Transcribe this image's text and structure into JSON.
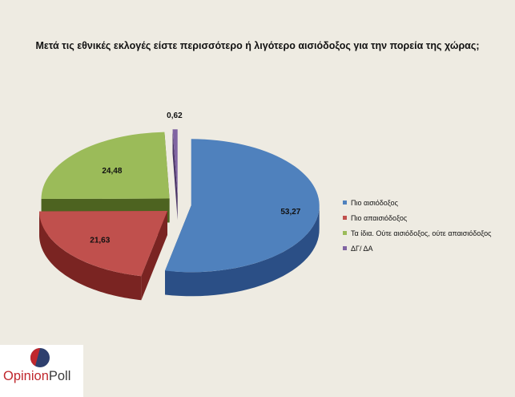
{
  "chart_data": {
    "type": "pie",
    "title": "Μετά τις εθνικές εκλογές είστε περισσότερο ή λιγότερο αισιόδοξος για την πορεία της χώρας;",
    "categories": [
      "Πιο αισιόδοξος",
      "Πιο απαισιόδοξος",
      "Τα ίδια. Ούτε αισιόδοξος, ούτε απαισιόδοξος",
      "ΔΓ/ ΔΑ"
    ],
    "values": [
      53.27,
      21.63,
      24.48,
      0.62
    ],
    "data_labels": [
      "53,27",
      "21,63",
      "24,48",
      "0,62"
    ],
    "colors": [
      "#4f81bd",
      "#c0504d",
      "#9bbb59",
      "#8064a2"
    ],
    "side_colors": [
      "#2b4f86",
      "#7a2422",
      "#4d6320",
      "#4a3566"
    ],
    "legend_position": "right",
    "exploded": true,
    "three_d": true
  },
  "logo": {
    "brand_a": "Opinion",
    "brand_b": "Poll",
    "colors": [
      "#c0272d",
      "#2e3f6e"
    ]
  }
}
